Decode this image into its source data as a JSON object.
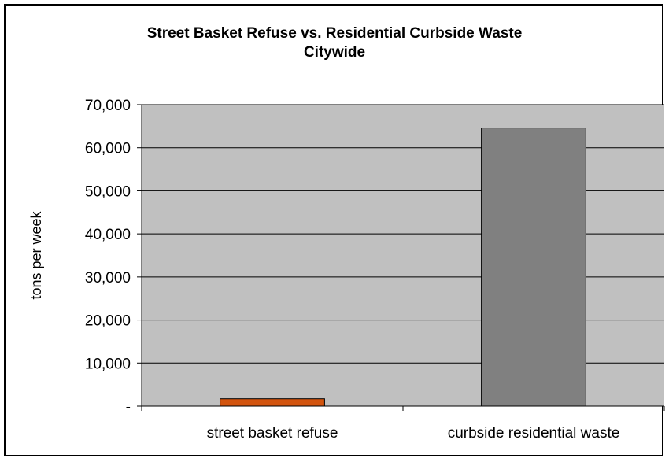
{
  "chart_data": {
    "type": "bar",
    "title": "Street Basket Refuse vs. Residential Curbside Waste",
    "subtitle": "Citywide",
    "xlabel": "",
    "ylabel": "tons per week",
    "categories": [
      "street basket refuse",
      "curbside residential waste"
    ],
    "values": [
      1700,
      64600
    ],
    "bar_colors": [
      "#d2540e",
      "#808080"
    ],
    "ylim": [
      0,
      70000
    ],
    "yticks": [
      0,
      10000,
      20000,
      30000,
      40000,
      50000,
      60000,
      70000
    ],
    "ytick_labels": [
      "-",
      "10,000",
      "20,000",
      "30,000",
      "40,000",
      "50,000",
      "60,000",
      "70,000"
    ],
    "plot_background": "#c0c0c0",
    "grid": true,
    "legend": "none"
  }
}
